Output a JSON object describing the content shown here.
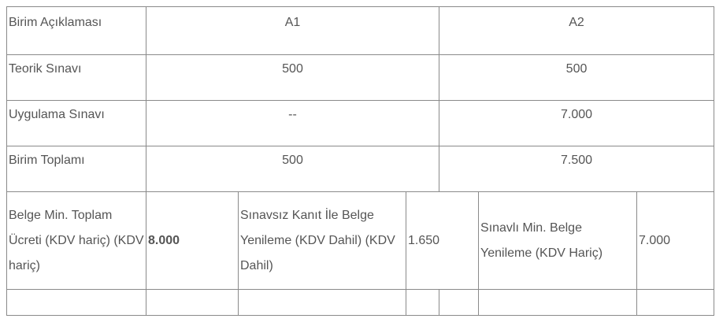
{
  "header": {
    "label": "Birim Açıklaması",
    "col_a1": "A1",
    "col_a2": "A2"
  },
  "rows": [
    {
      "label": "Teorik Sınavı",
      "a1": "500",
      "a2": "500"
    },
    {
      "label": "Uygulama Sınavı",
      "a1": "--",
      "a2": "7.000"
    },
    {
      "label": "Birim Toplamı",
      "a1": "500",
      "a2": "7.500"
    }
  ],
  "summary": {
    "min_total_label": "Belge Min. Toplam Ücreti (KDV hariç) (KDV hariç)",
    "min_total_value": "8.000",
    "renewal_no_exam_label": "Sınavsız Kanıt İle Belge Yenileme (KDV Dahil) (KDV Dahil)",
    "renewal_no_exam_value": "1.650",
    "renewal_exam_label": "Sınavlı Min. Belge Yenileme (KDV Hariç)",
    "renewal_exam_value": "7.000"
  }
}
